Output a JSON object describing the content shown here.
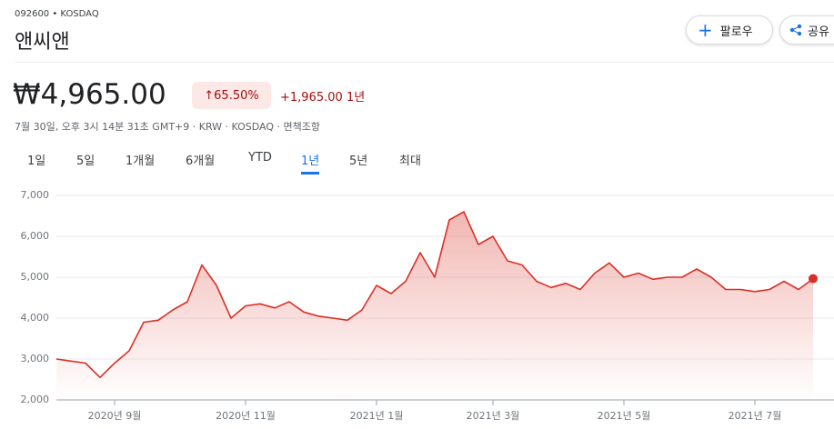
{
  "header": {
    "ticker": "092600 • KOSDAQ",
    "company": "앤씨앤",
    "follow": "팔로우",
    "share": "공유"
  },
  "price": {
    "value": "₩4,965.00",
    "change_percent": "65.50%",
    "change": "+1,965.00",
    "period": "1년",
    "info": "7월 30일, 오후 3시 14분 31초 GMT+9 · KRW · KOSDAQ · 면책조항"
  },
  "tabs": [
    "1일",
    "5일",
    "1개월",
    "6개월",
    "YTD",
    "1년",
    "5년",
    "최대"
  ],
  "selected_tab": 5,
  "chart_data": {
    "type": "line",
    "color": "#d93025",
    "grid": true,
    "categories": [
      null,
      null,
      null,
      null,
      "2020년 9월",
      null,
      null,
      null,
      null,
      null,
      null,
      null,
      null,
      "2020년 11월",
      null,
      null,
      null,
      null,
      null,
      null,
      null,
      null,
      "2021년 1월",
      null,
      null,
      null,
      null,
      null,
      null,
      null,
      "2021년 3월",
      null,
      null,
      null,
      null,
      null,
      null,
      null,
      null,
      "2021년 5월",
      null,
      null,
      null,
      null,
      null,
      null,
      null,
      null,
      "2021년 7월",
      null,
      null,
      null,
      null
    ],
    "values": [
      3000,
      2950,
      2900,
      2550,
      2900,
      3200,
      3900,
      3950,
      4200,
      4400,
      5300,
      4800,
      4000,
      4300,
      4350,
      4250,
      4400,
      4150,
      4050,
      4000,
      3950,
      4200,
      4800,
      4600,
      4900,
      5600,
      5000,
      6400,
      6600,
      5800,
      6000,
      5400,
      5300,
      4900,
      4750,
      4850,
      4700,
      5100,
      5350,
      5000,
      5100,
      4950,
      5000,
      5000,
      5200,
      5000,
      4700,
      4700,
      4650,
      4700,
      4900,
      4700,
      4965
    ],
    "ylim": [
      2000,
      7000
    ],
    "yticks": [
      {
        "value": 2000,
        "label": "2,000"
      },
      {
        "value": 3000,
        "label": "3,000"
      },
      {
        "value": 4000,
        "label": "4,000"
      },
      {
        "value": 5000,
        "label": "5,000"
      },
      {
        "value": 6000,
        "label": "6,000"
      },
      {
        "value": 7000,
        "label": "7,000"
      }
    ]
  }
}
